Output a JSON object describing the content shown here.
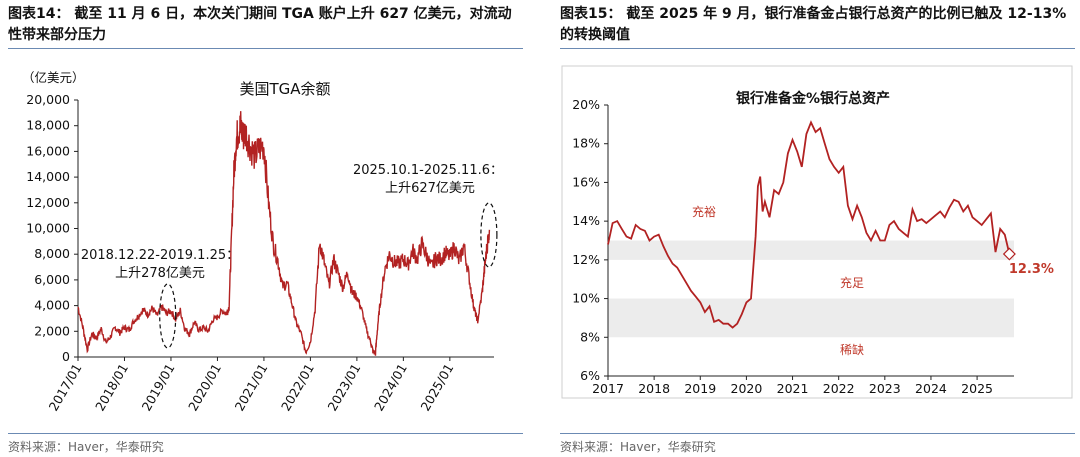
{
  "colors": {
    "series": "#b22222",
    "accent_red": "#c0392b",
    "band": "#ececec",
    "rule": "#6b8ab3"
  },
  "left": {
    "figure_title": "图表14： 截至 11 月 6 日，本次关门期间 TGA 账户上升 627 亿美元，对流动性带来部分压力",
    "source": "资料来源：Haver，华泰研究",
    "chart_data": {
      "type": "line",
      "title": "美国TGA余额",
      "unit_label": "（亿美元）",
      "ylim": [
        0,
        20000
      ],
      "yticks": [
        0,
        2000,
        4000,
        6000,
        8000,
        10000,
        12000,
        14000,
        16000,
        18000,
        20000
      ],
      "ytick_labels": [
        "0",
        "2,000",
        "4,000",
        "6,000",
        "8,000",
        "10,000",
        "12,000",
        "14,000",
        "16,000",
        "18,000",
        "20,000"
      ],
      "xlim": [
        2017.0,
        2025.95
      ],
      "xticks": [
        2017,
        2018,
        2019,
        2020,
        2021,
        2022,
        2023,
        2024,
        2025
      ],
      "xtick_labels": [
        "2017/01",
        "2018/01",
        "2019/01",
        "2020/01",
        "2021/01",
        "2022/01",
        "2023/01",
        "2024/01",
        "2025/01"
      ],
      "series": [
        {
          "name": "美国TGA余额",
          "x": [
            2017.0,
            2017.1,
            2017.2,
            2017.3,
            2017.4,
            2017.5,
            2017.6,
            2017.7,
            2017.8,
            2017.9,
            2018.0,
            2018.1,
            2018.2,
            2018.3,
            2018.4,
            2018.5,
            2018.6,
            2018.7,
            2018.8,
            2018.9,
            2019.0,
            2019.1,
            2019.2,
            2019.3,
            2019.4,
            2019.5,
            2019.6,
            2019.7,
            2019.8,
            2019.9,
            2020.0,
            2020.1,
            2020.2,
            2020.25,
            2020.3,
            2020.35,
            2020.4,
            2020.45,
            2020.5,
            2020.55,
            2020.6,
            2020.7,
            2020.8,
            2020.9,
            2021.0,
            2021.1,
            2021.2,
            2021.3,
            2021.4,
            2021.5,
            2021.6,
            2021.7,
            2021.8,
            2021.9,
            2022.0,
            2022.1,
            2022.2,
            2022.3,
            2022.4,
            2022.5,
            2022.6,
            2022.7,
            2022.8,
            2022.9,
            2023.0,
            2023.1,
            2023.2,
            2023.3,
            2023.35,
            2023.4,
            2023.45,
            2023.5,
            2023.6,
            2023.7,
            2023.8,
            2023.9,
            2024.0,
            2024.1,
            2024.2,
            2024.3,
            2024.4,
            2024.5,
            2024.6,
            2024.7,
            2024.8,
            2024.9,
            2025.0,
            2025.1,
            2025.2,
            2025.3,
            2025.4,
            2025.5,
            2025.55,
            2025.6,
            2025.7,
            2025.75,
            2025.8,
            2025.85
          ],
          "y": [
            3900,
            2400,
            600,
            1800,
            1500,
            2200,
            1100,
            1600,
            2300,
            1900,
            2300,
            2100,
            2800,
            3200,
            3700,
            3300,
            3800,
            3200,
            3900,
            3400,
            3600,
            2900,
            3600,
            2200,
            1800,
            2700,
            2100,
            2300,
            2000,
            2900,
            3100,
            3600,
            3400,
            3900,
            9000,
            14000,
            16800,
            17600,
            18000,
            17200,
            17500,
            16500,
            15600,
            16200,
            16500,
            12000,
            8800,
            7500,
            5500,
            5700,
            4200,
            2600,
            1800,
            400,
            1200,
            3700,
            9000,
            7300,
            5600,
            7600,
            6500,
            5400,
            6600,
            5000,
            4700,
            3700,
            2200,
            1100,
            400,
            300,
            2500,
            4200,
            6800,
            8000,
            7400,
            7300,
            7600,
            7200,
            8300,
            7600,
            8800,
            7900,
            7000,
            7700,
            7600,
            8100,
            7800,
            8600,
            7400,
            8700,
            6500,
            4200,
            3400,
            2800,
            5200,
            7000,
            8600,
            9900
          ]
        }
      ],
      "annotations": [
        {
          "label1": "2018.12.22-2019.1.25：",
          "label2": "上升278亿美元"
        },
        {
          "label1": "2025.10.1-2025.11.6：",
          "label2": "上升627亿美元"
        }
      ]
    }
  },
  "right": {
    "figure_title": "图表15： 截至 2025 年 9 月，银行准备金占银行总资产的比例已触及 12-13%的转换阈值",
    "source": "资料来源：Haver，华泰研究",
    "chart_data": {
      "type": "line",
      "title": "银行准备金%银行总资产",
      "ylim": [
        6,
        20
      ],
      "yticks": [
        6,
        8,
        10,
        12,
        14,
        16,
        18,
        20
      ],
      "ytick_labels": [
        "6%",
        "8%",
        "10%",
        "12%",
        "14%",
        "16%",
        "18%",
        "20%"
      ],
      "xlim": [
        2017.0,
        2025.8
      ],
      "xticks": [
        2017,
        2018,
        2019,
        2020,
        2021,
        2022,
        2023,
        2024,
        2025
      ],
      "xtick_labels": [
        "2017",
        "2018",
        "2019",
        "2020",
        "2021",
        "2022",
        "2023",
        "2024",
        "2025"
      ],
      "bands": [
        {
          "from": 12,
          "to": 13
        },
        {
          "from": 8,
          "to": 10
        }
      ],
      "zone_labels": [
        "充裕",
        "充足",
        "稀缺"
      ],
      "end_label": "12.3%",
      "series": [
        {
          "name": "银行准备金%银行总资产",
          "x": [
            2017.0,
            2017.1,
            2017.2,
            2017.3,
            2017.4,
            2017.5,
            2017.6,
            2017.7,
            2017.8,
            2017.9,
            2018.0,
            2018.1,
            2018.2,
            2018.3,
            2018.4,
            2018.5,
            2018.6,
            2018.7,
            2018.8,
            2018.9,
            2019.0,
            2019.1,
            2019.2,
            2019.3,
            2019.4,
            2019.5,
            2019.6,
            2019.7,
            2019.8,
            2019.9,
            2020.0,
            2020.1,
            2020.2,
            2020.25,
            2020.3,
            2020.35,
            2020.4,
            2020.5,
            2020.6,
            2020.7,
            2020.8,
            2020.9,
            2021.0,
            2021.1,
            2021.2,
            2021.3,
            2021.4,
            2021.5,
            2021.6,
            2021.7,
            2021.8,
            2021.9,
            2022.0,
            2022.1,
            2022.2,
            2022.3,
            2022.4,
            2022.5,
            2022.6,
            2022.7,
            2022.8,
            2022.9,
            2023.0,
            2023.1,
            2023.2,
            2023.3,
            2023.4,
            2023.5,
            2023.6,
            2023.7,
            2023.8,
            2023.9,
            2024.0,
            2024.1,
            2024.2,
            2024.3,
            2024.4,
            2024.5,
            2024.6,
            2024.7,
            2024.8,
            2024.9,
            2025.0,
            2025.1,
            2025.2,
            2025.3,
            2025.4,
            2025.5,
            2025.6,
            2025.7
          ],
          "y": [
            12.8,
            13.9,
            14.0,
            13.6,
            13.2,
            13.1,
            13.8,
            13.6,
            13.5,
            13.0,
            13.2,
            13.3,
            12.7,
            12.2,
            11.8,
            11.6,
            11.2,
            10.8,
            10.4,
            10.1,
            9.8,
            9.3,
            9.6,
            8.8,
            8.9,
            8.7,
            8.7,
            8.5,
            8.7,
            9.2,
            9.8,
            10.0,
            13.2,
            15.8,
            16.3,
            14.5,
            15.0,
            14.2,
            15.6,
            15.4,
            16.0,
            17.5,
            18.2,
            17.6,
            16.8,
            18.5,
            19.1,
            18.6,
            18.8,
            18.0,
            17.2,
            16.8,
            16.5,
            16.8,
            14.8,
            14.1,
            14.8,
            14.2,
            13.4,
            13.0,
            13.5,
            13.0,
            13.0,
            13.8,
            14.0,
            13.6,
            13.4,
            13.2,
            14.6,
            14.0,
            14.1,
            13.9,
            14.1,
            14.3,
            14.5,
            14.2,
            14.7,
            15.1,
            15.0,
            14.5,
            14.8,
            14.2,
            14.0,
            13.8,
            14.1,
            14.4,
            12.4,
            13.6,
            13.3,
            12.3
          ]
        }
      ]
    }
  }
}
